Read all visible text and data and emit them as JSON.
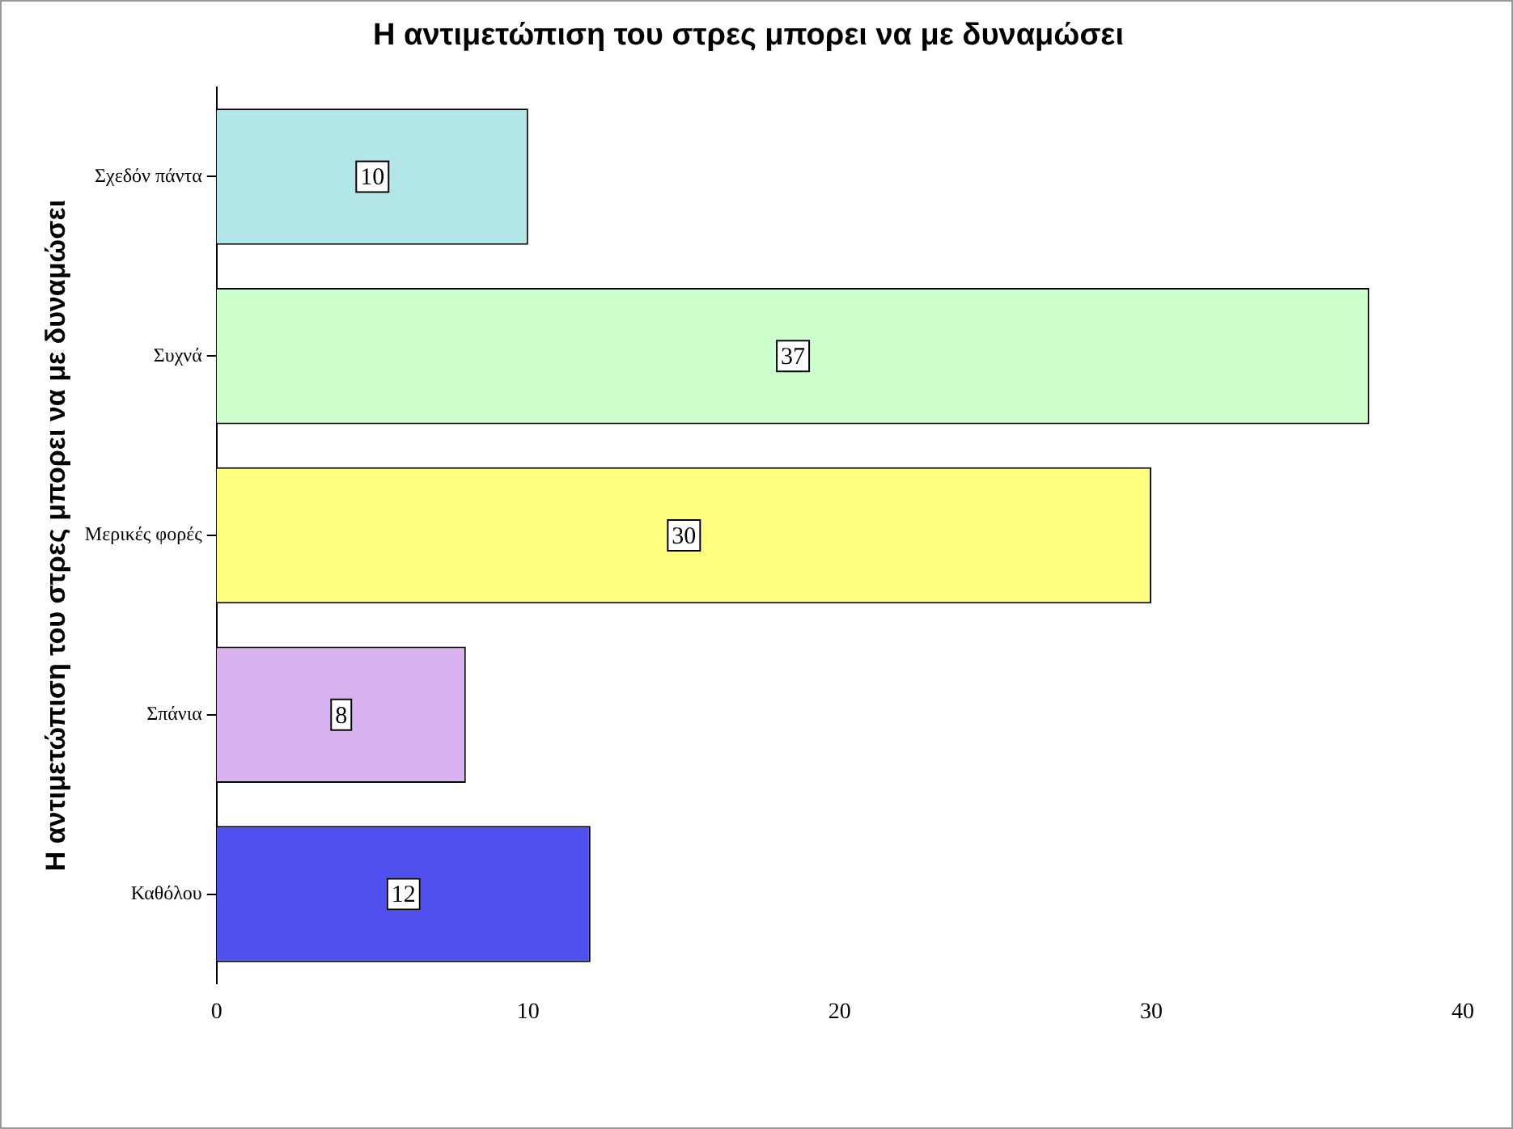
{
  "chart_data": {
    "type": "bar",
    "orientation": "horizontal",
    "title": "Η αντιμετώπιση του στρες μπορει να με δυναμώσει",
    "ylabel": "Η αντιμετώπιση του στρες μπορει να με δυναμώσει",
    "categories": [
      "Σχεδόν πάντα",
      "Συχνά",
      "Μερικές φορές",
      "Σπάνια",
      "Καθόλου"
    ],
    "values": [
      10,
      37,
      30,
      8,
      12
    ],
    "colors": [
      "#b3e6e6",
      "#ccffcc",
      "#ffff80",
      "#d9b3f0",
      "#5050ee"
    ],
    "xlim": [
      0,
      40
    ],
    "xticks": [
      0,
      10,
      20,
      30,
      40
    ],
    "grid": false,
    "legend": false,
    "data_labels": true
  }
}
